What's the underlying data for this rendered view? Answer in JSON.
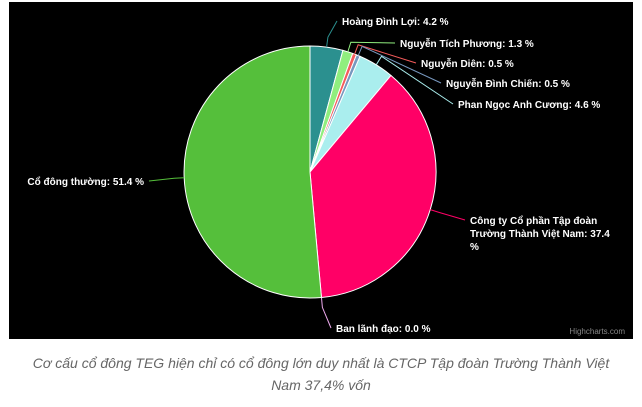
{
  "chart_data": {
    "type": "pie",
    "categories": [
      "Hoàng Đình Lợi",
      "Nguyễn Tích Phương",
      "Nguyễn Diên",
      "Nguyễn Đình Chiến",
      "Phan Ngọc Anh Cương",
      "Công ty Cổ phần Tập đoàn Trường Thành Việt Nam",
      "Ban lãnh đạo",
      "Cổ đông thường"
    ],
    "values": [
      4.2,
      1.3,
      0.5,
      0.5,
      4.6,
      37.4,
      0.0,
      51.4
    ],
    "unit": "%",
    "colors": [
      "#2b908f",
      "#90ee7e",
      "#f45b5b",
      "#7798bf",
      "#aaeeee",
      "#ff0066",
      "#eeaaee",
      "#55bf3b"
    ],
    "data_labels": [
      [
        "Hoàng Đình Lợi: 4.2 %"
      ],
      [
        "Nguyễn Tích Phương: 1.3 %"
      ],
      [
        "Nguyễn Diên: 0.5 %"
      ],
      [
        "Nguyễn Đình Chiến: 0.5 %"
      ],
      [
        "Phan Ngọc Anh Cương: 4.6 %"
      ],
      [
        "Công ty Cổ phần Tập đoàn",
        "Trường Thành Việt Nam: 37.4",
        "%"
      ],
      [
        "Ban lãnh đạo: 0.0 %"
      ],
      [
        "Cổ đông thường: 51.4 %"
      ]
    ],
    "background": "#000000",
    "legend": "none"
  },
  "credits": "Highcharts.com",
  "caption": [
    "Cơ cấu cổ đông TEG hiện chỉ có cổ đông lớn duy nhất là CTCP Tập đoàn Trường Thành Việt",
    "Nam 37,4% vốn"
  ]
}
